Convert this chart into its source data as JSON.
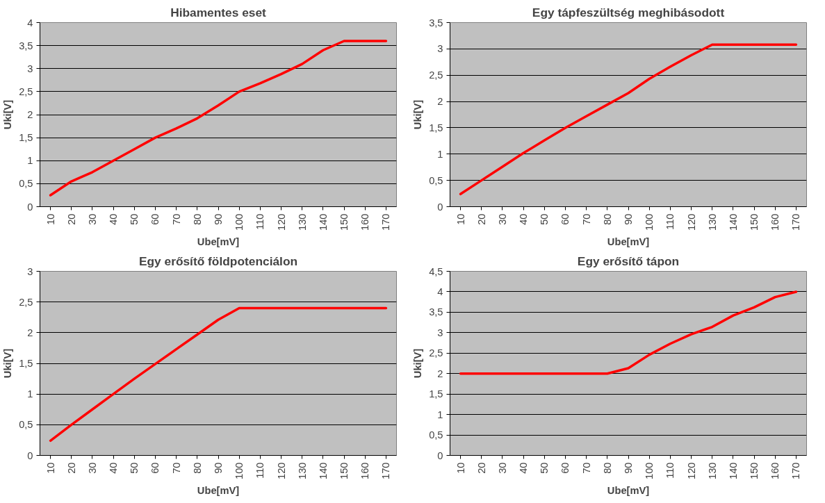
{
  "chart_data": [
    {
      "type": "line",
      "title": "Hibamentes eset",
      "xlabel": "Ube[mV]",
      "ylabel": "Uki[V]",
      "grid": "y",
      "marker": "none",
      "line_style": "solid",
      "xlim": [
        5,
        175
      ],
      "xticks": [
        10,
        20,
        30,
        40,
        50,
        60,
        70,
        80,
        90,
        100,
        110,
        120,
        130,
        140,
        150,
        160,
        170
      ],
      "ylim": [
        0,
        4
      ],
      "yticks": [
        0,
        {
          "value": 0.5,
          "label": "0,5"
        },
        1,
        {
          "value": 1.5,
          "label": "1,5"
        },
        2,
        {
          "value": 2.5,
          "label": "2,5"
        },
        3,
        {
          "value": 3.5,
          "label": "3,5"
        },
        4
      ],
      "series": [
        {
          "color": "#ff0000",
          "x": [
            10,
            20,
            30,
            40,
            50,
            60,
            70,
            80,
            90,
            100,
            110,
            120,
            130,
            140,
            150,
            160,
            170
          ],
          "values": [
            0.25,
            0.55,
            0.75,
            1.0,
            1.25,
            1.5,
            1.7,
            1.92,
            2.2,
            2.5,
            2.68,
            2.88,
            3.1,
            3.4,
            3.6,
            3.6,
            3.6
          ]
        }
      ]
    },
    {
      "type": "line",
      "title": "Egy tápfeszültség meghibásodott",
      "xlabel": "Ube[mV]",
      "ylabel": "Uki[V]",
      "grid": "y",
      "marker": "none",
      "line_style": "solid",
      "xlim": [
        5,
        175
      ],
      "xticks": [
        10,
        20,
        30,
        40,
        50,
        60,
        70,
        80,
        90,
        100,
        110,
        120,
        130,
        140,
        150,
        160,
        170
      ],
      "ylim": [
        0,
        3.5
      ],
      "yticks": [
        0,
        {
          "value": 0.5,
          "label": "0,5"
        },
        1,
        {
          "value": 1.5,
          "label": "1,5"
        },
        2,
        {
          "value": 2.5,
          "label": "2,5"
        },
        3,
        {
          "value": 3.5,
          "label": "3,5"
        }
      ],
      "series": [
        {
          "color": "#ff0000",
          "x": [
            10,
            20,
            30,
            40,
            50,
            60,
            70,
            80,
            90,
            100,
            110,
            120,
            130,
            140,
            150,
            160,
            170
          ],
          "values": [
            0.24,
            0.5,
            0.76,
            1.02,
            1.26,
            1.5,
            1.72,
            1.94,
            2.16,
            2.43,
            2.66,
            2.88,
            3.08,
            3.08,
            3.08,
            3.08,
            3.08
          ]
        }
      ]
    },
    {
      "type": "line",
      "title": "Egy erősítő földpotenciálon",
      "xlabel": "Ube[mV]",
      "ylabel": "Uki[V]",
      "grid": "y",
      "marker": "none",
      "line_style": "solid",
      "xlim": [
        5,
        175
      ],
      "xticks": [
        10,
        20,
        30,
        40,
        50,
        60,
        70,
        80,
        90,
        100,
        110,
        120,
        130,
        140,
        150,
        160,
        170
      ],
      "ylim": [
        0,
        3
      ],
      "yticks": [
        0,
        {
          "value": 0.5,
          "label": "0,5"
        },
        1,
        {
          "value": 1.5,
          "label": "1,5"
        },
        2,
        {
          "value": 2.5,
          "label": "2,5"
        },
        3
      ],
      "series": [
        {
          "color": "#ff0000",
          "x": [
            10,
            20,
            30,
            40,
            50,
            60,
            70,
            80,
            90,
            100,
            110,
            120,
            130,
            140,
            150,
            160,
            170
          ],
          "values": [
            0.24,
            0.5,
            0.75,
            1.0,
            1.25,
            1.49,
            1.73,
            1.97,
            2.21,
            2.4,
            2.4,
            2.4,
            2.4,
            2.4,
            2.4,
            2.4,
            2.4
          ]
        }
      ]
    },
    {
      "type": "line",
      "title": "Egy erősítő tápon",
      "xlabel": "Ube[mV]",
      "ylabel": "Uki[V]",
      "grid": "y",
      "marker": "none",
      "line_style": "solid",
      "xlim": [
        5,
        175
      ],
      "xticks": [
        10,
        20,
        30,
        40,
        50,
        60,
        70,
        80,
        90,
        100,
        110,
        120,
        130,
        140,
        150,
        160,
        170
      ],
      "ylim": [
        0,
        4.5
      ],
      "yticks": [
        0,
        {
          "value": 0.5,
          "label": "0,5"
        },
        1,
        {
          "value": 1.5,
          "label": "1,5"
        },
        2,
        {
          "value": 2.5,
          "label": "2,5"
        },
        3,
        {
          "value": 3.5,
          "label": "3,5"
        },
        4,
        {
          "value": 4.5,
          "label": "4,5"
        }
      ],
      "series": [
        {
          "color": "#ff0000",
          "x": [
            10,
            20,
            30,
            40,
            50,
            60,
            70,
            80,
            90,
            100,
            110,
            120,
            130,
            140,
            150,
            160,
            170
          ],
          "values": [
            2.0,
            2.0,
            2.0,
            2.0,
            2.0,
            2.0,
            2.0,
            2.0,
            2.13,
            2.46,
            2.73,
            2.96,
            3.14,
            3.42,
            3.62,
            3.87,
            4.0
          ]
        }
      ]
    }
  ]
}
